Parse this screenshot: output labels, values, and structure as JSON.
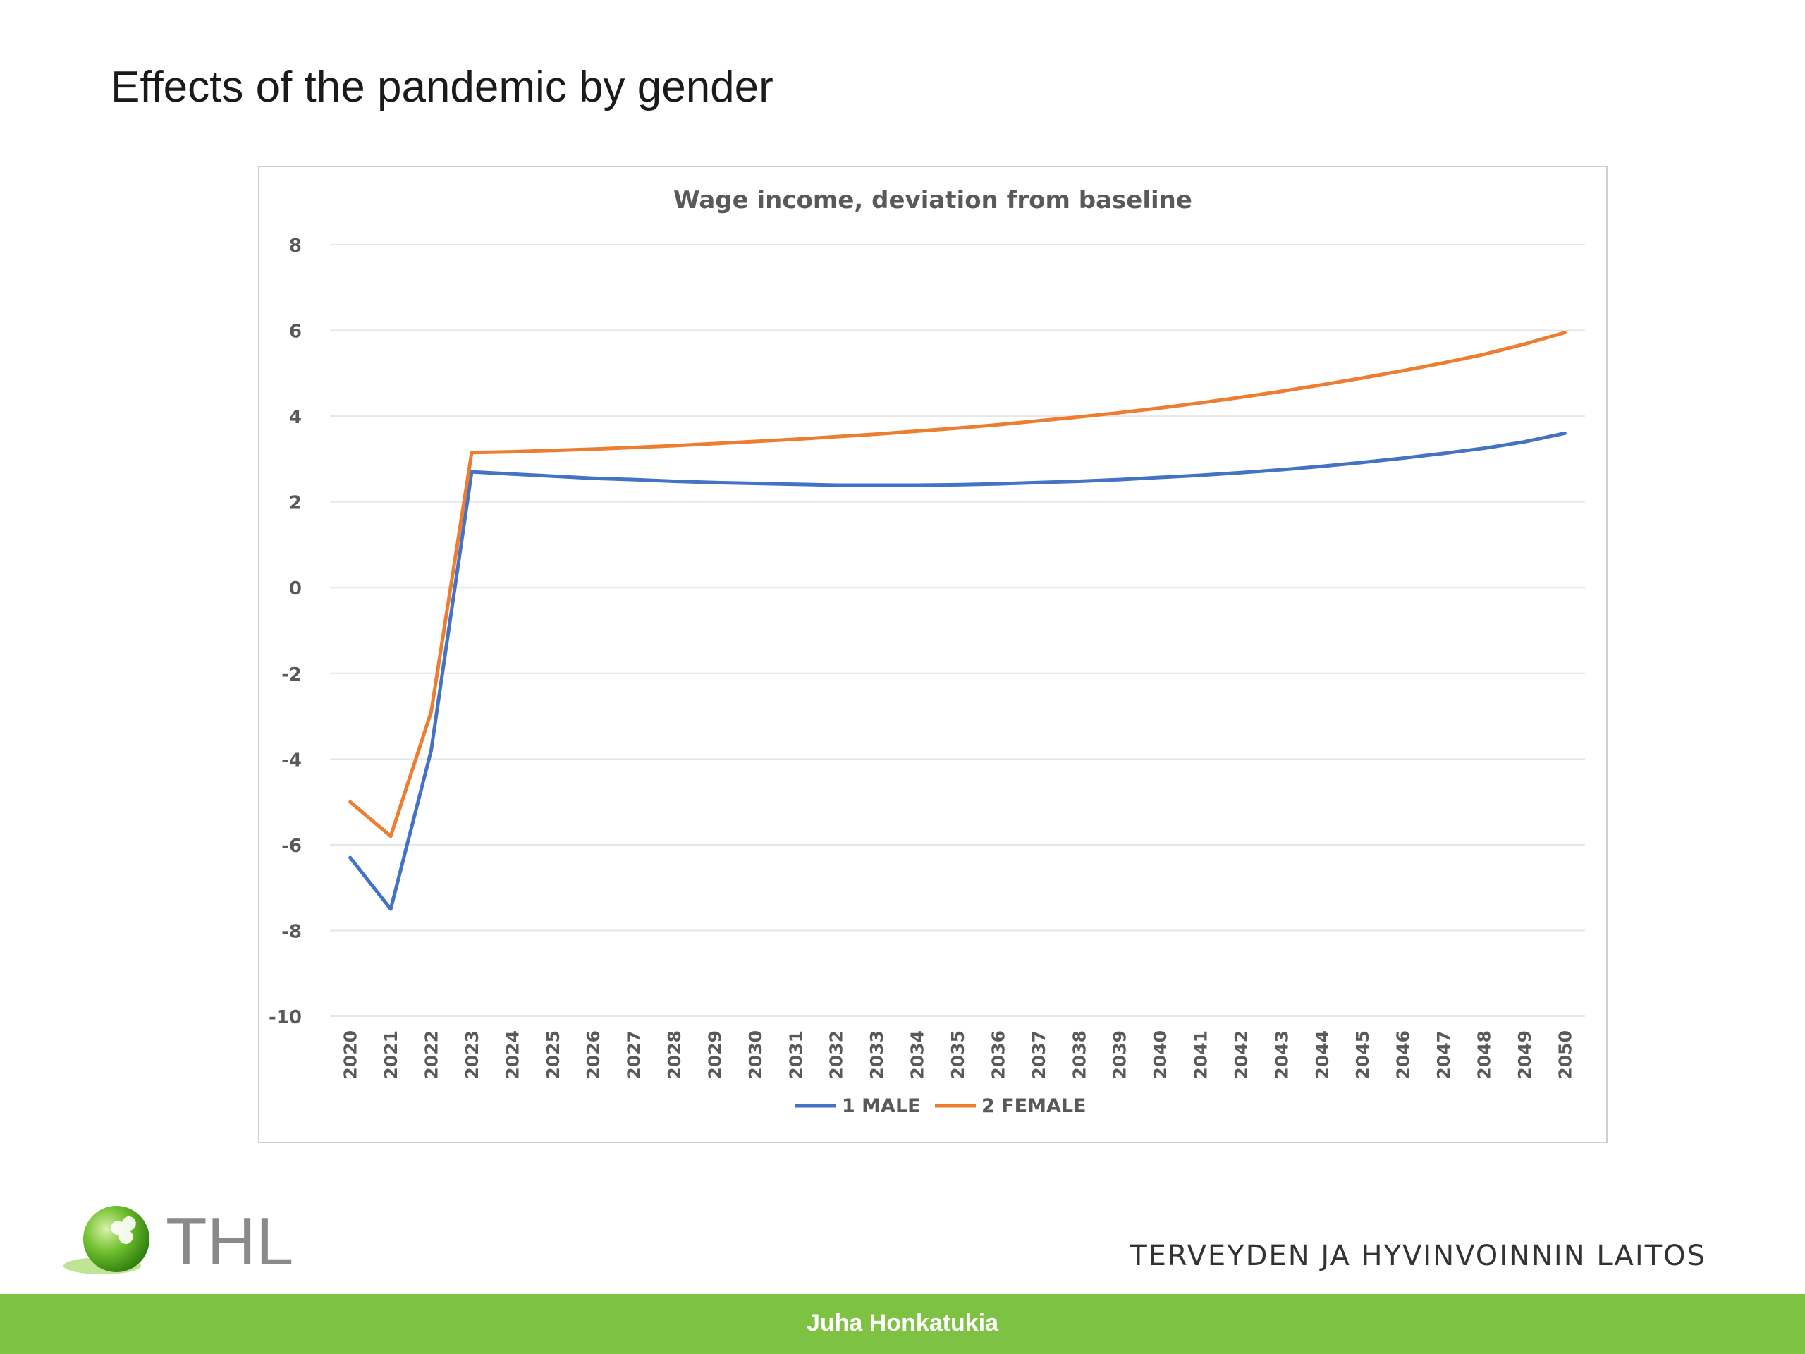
{
  "slide": {
    "title": "Effects of the pandemic by gender",
    "org_name": "TERVEYDEN JA HYVINVOINNIN LAITOS",
    "logo_text": "THL",
    "footer_author": "Juha Honkatukia"
  },
  "colors": {
    "male": "#4472C4",
    "female": "#ED7D31",
    "footer_green": "#7DC242",
    "grid": "#e6e6e6",
    "axis_text": "#595959"
  },
  "chart_data": {
    "type": "line",
    "title": "Wage income, deviation from baseline",
    "xlabel": "",
    "ylabel": "",
    "ylim": [
      -10,
      8
    ],
    "yticks": [
      8,
      6,
      4,
      2,
      0,
      -2,
      -4,
      -6,
      -8,
      -10
    ],
    "grid": true,
    "legend_position": "bottom-center",
    "x": [
      "2020",
      "2021",
      "2022",
      "2023",
      "2024",
      "2025",
      "2026",
      "2027",
      "2028",
      "2029",
      "2030",
      "2031",
      "2032",
      "2033",
      "2034",
      "2035",
      "2036",
      "2037",
      "2038",
      "2039",
      "2040",
      "2041",
      "2042",
      "2043",
      "2044",
      "2045",
      "2046",
      "2047",
      "2048",
      "2049",
      "2050"
    ],
    "series": [
      {
        "name": "1 MALE",
        "color": "#4472C4",
        "values": [
          -6.3,
          -7.5,
          -3.8,
          2.7,
          2.65,
          2.6,
          2.55,
          2.52,
          2.48,
          2.45,
          2.43,
          2.41,
          2.39,
          2.39,
          2.39,
          2.4,
          2.42,
          2.45,
          2.48,
          2.52,
          2.57,
          2.62,
          2.68,
          2.75,
          2.83,
          2.92,
          3.02,
          3.13,
          3.25,
          3.4,
          3.6
        ]
      },
      {
        "name": "2 FEMALE",
        "color": "#ED7D31",
        "values": [
          -5.0,
          -5.8,
          -2.9,
          3.15,
          3.17,
          3.2,
          3.23,
          3.27,
          3.31,
          3.36,
          3.41,
          3.46,
          3.52,
          3.58,
          3.65,
          3.72,
          3.8,
          3.89,
          3.98,
          4.08,
          4.19,
          4.31,
          4.44,
          4.58,
          4.73,
          4.89,
          5.06,
          5.24,
          5.44,
          5.68,
          5.95
        ]
      }
    ]
  }
}
